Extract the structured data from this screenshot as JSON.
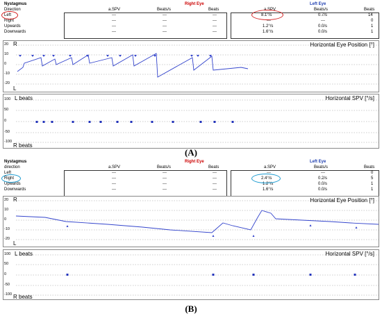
{
  "colors": {
    "trace": "#3344cc",
    "right_eye": "#cc0000",
    "left_eye": "#1f3fb0",
    "highlight_a": "#d42020",
    "highlight_b": "#1a9ad0"
  },
  "panels": [
    {
      "caption": "(A)",
      "table": {
        "title": "Nystagmus",
        "direction_label": "Direction",
        "right_eye": "Right Eye",
        "left_eye": "Left Eye",
        "cols": [
          "a.SPV",
          "Beats/s",
          "Beats"
        ],
        "rows": [
          {
            "label": "Left",
            "r": [
              "---",
              "---",
              "---"
            ],
            "l": [
              "8.1°/s",
              "0.7/s",
              "14"
            ]
          },
          {
            "label": "Right",
            "r": [
              "---",
              "---",
              "---"
            ],
            "l": [
              "---",
              "---",
              "0"
            ]
          },
          {
            "label": "Upwards",
            "r": [
              "---",
              "---",
              "---"
            ],
            "l": [
              "1.2°/s",
              "0.0/s",
              "1"
            ]
          },
          {
            "label": "Downwards",
            "r": [
              "---",
              "---",
              "---"
            ],
            "l": [
              "1.6°/s",
              "0.0/s",
              "1"
            ]
          }
        ]
      },
      "position_plot": {
        "title": "Horizontal Eye Position [°]",
        "top_label": "R",
        "bottom_label": "L",
        "yticks": [
          "20",
          "10",
          "0",
          "-10",
          "-20"
        ]
      },
      "spv_plot": {
        "title": "Horizontal SPV [°/s]",
        "top_label": "L beats",
        "bottom_label": "R beats",
        "yticks": [
          "100",
          "50",
          "0",
          "-50",
          "-100"
        ]
      }
    },
    {
      "caption": "(B)",
      "table": {
        "title": "Nystagmus",
        "direction_label": "direction",
        "right_eye": "Right Eye",
        "left_eye": "Left Eye",
        "cols": [
          "a.SPV",
          "Beats/s",
          "Beats"
        ],
        "rows": [
          {
            "label": "Left",
            "r": [
              "---",
              "---",
              "---"
            ],
            "l": [
              "---",
              "---",
              "0"
            ]
          },
          {
            "label": "Right",
            "r": [
              "---",
              "---",
              "---"
            ],
            "l": [
              "2.4°/s",
              "0.2/s",
              "5"
            ]
          },
          {
            "label": "Upwards",
            "r": [
              "---",
              "---",
              "---"
            ],
            "l": [
              "1.2°/s",
              "0.0/s",
              "1"
            ]
          },
          {
            "label": "Downwards",
            "r": [
              "---",
              "---",
              "---"
            ],
            "l": [
              "1.6°/s",
              "0.0/s",
              "1"
            ]
          }
        ]
      },
      "position_plot": {
        "title": "Horizontal Eye Position [°]",
        "top_label": "R",
        "bottom_label": "L",
        "yticks": [
          "20",
          "10",
          "0",
          "-10",
          "-20"
        ]
      },
      "spv_plot": {
        "title": "Horizontal SPV [°/s]",
        "top_label": "L beats",
        "bottom_label": "R beats",
        "yticks": [
          "100",
          "50",
          "0",
          "-50",
          "-100"
        ]
      }
    }
  ]
}
